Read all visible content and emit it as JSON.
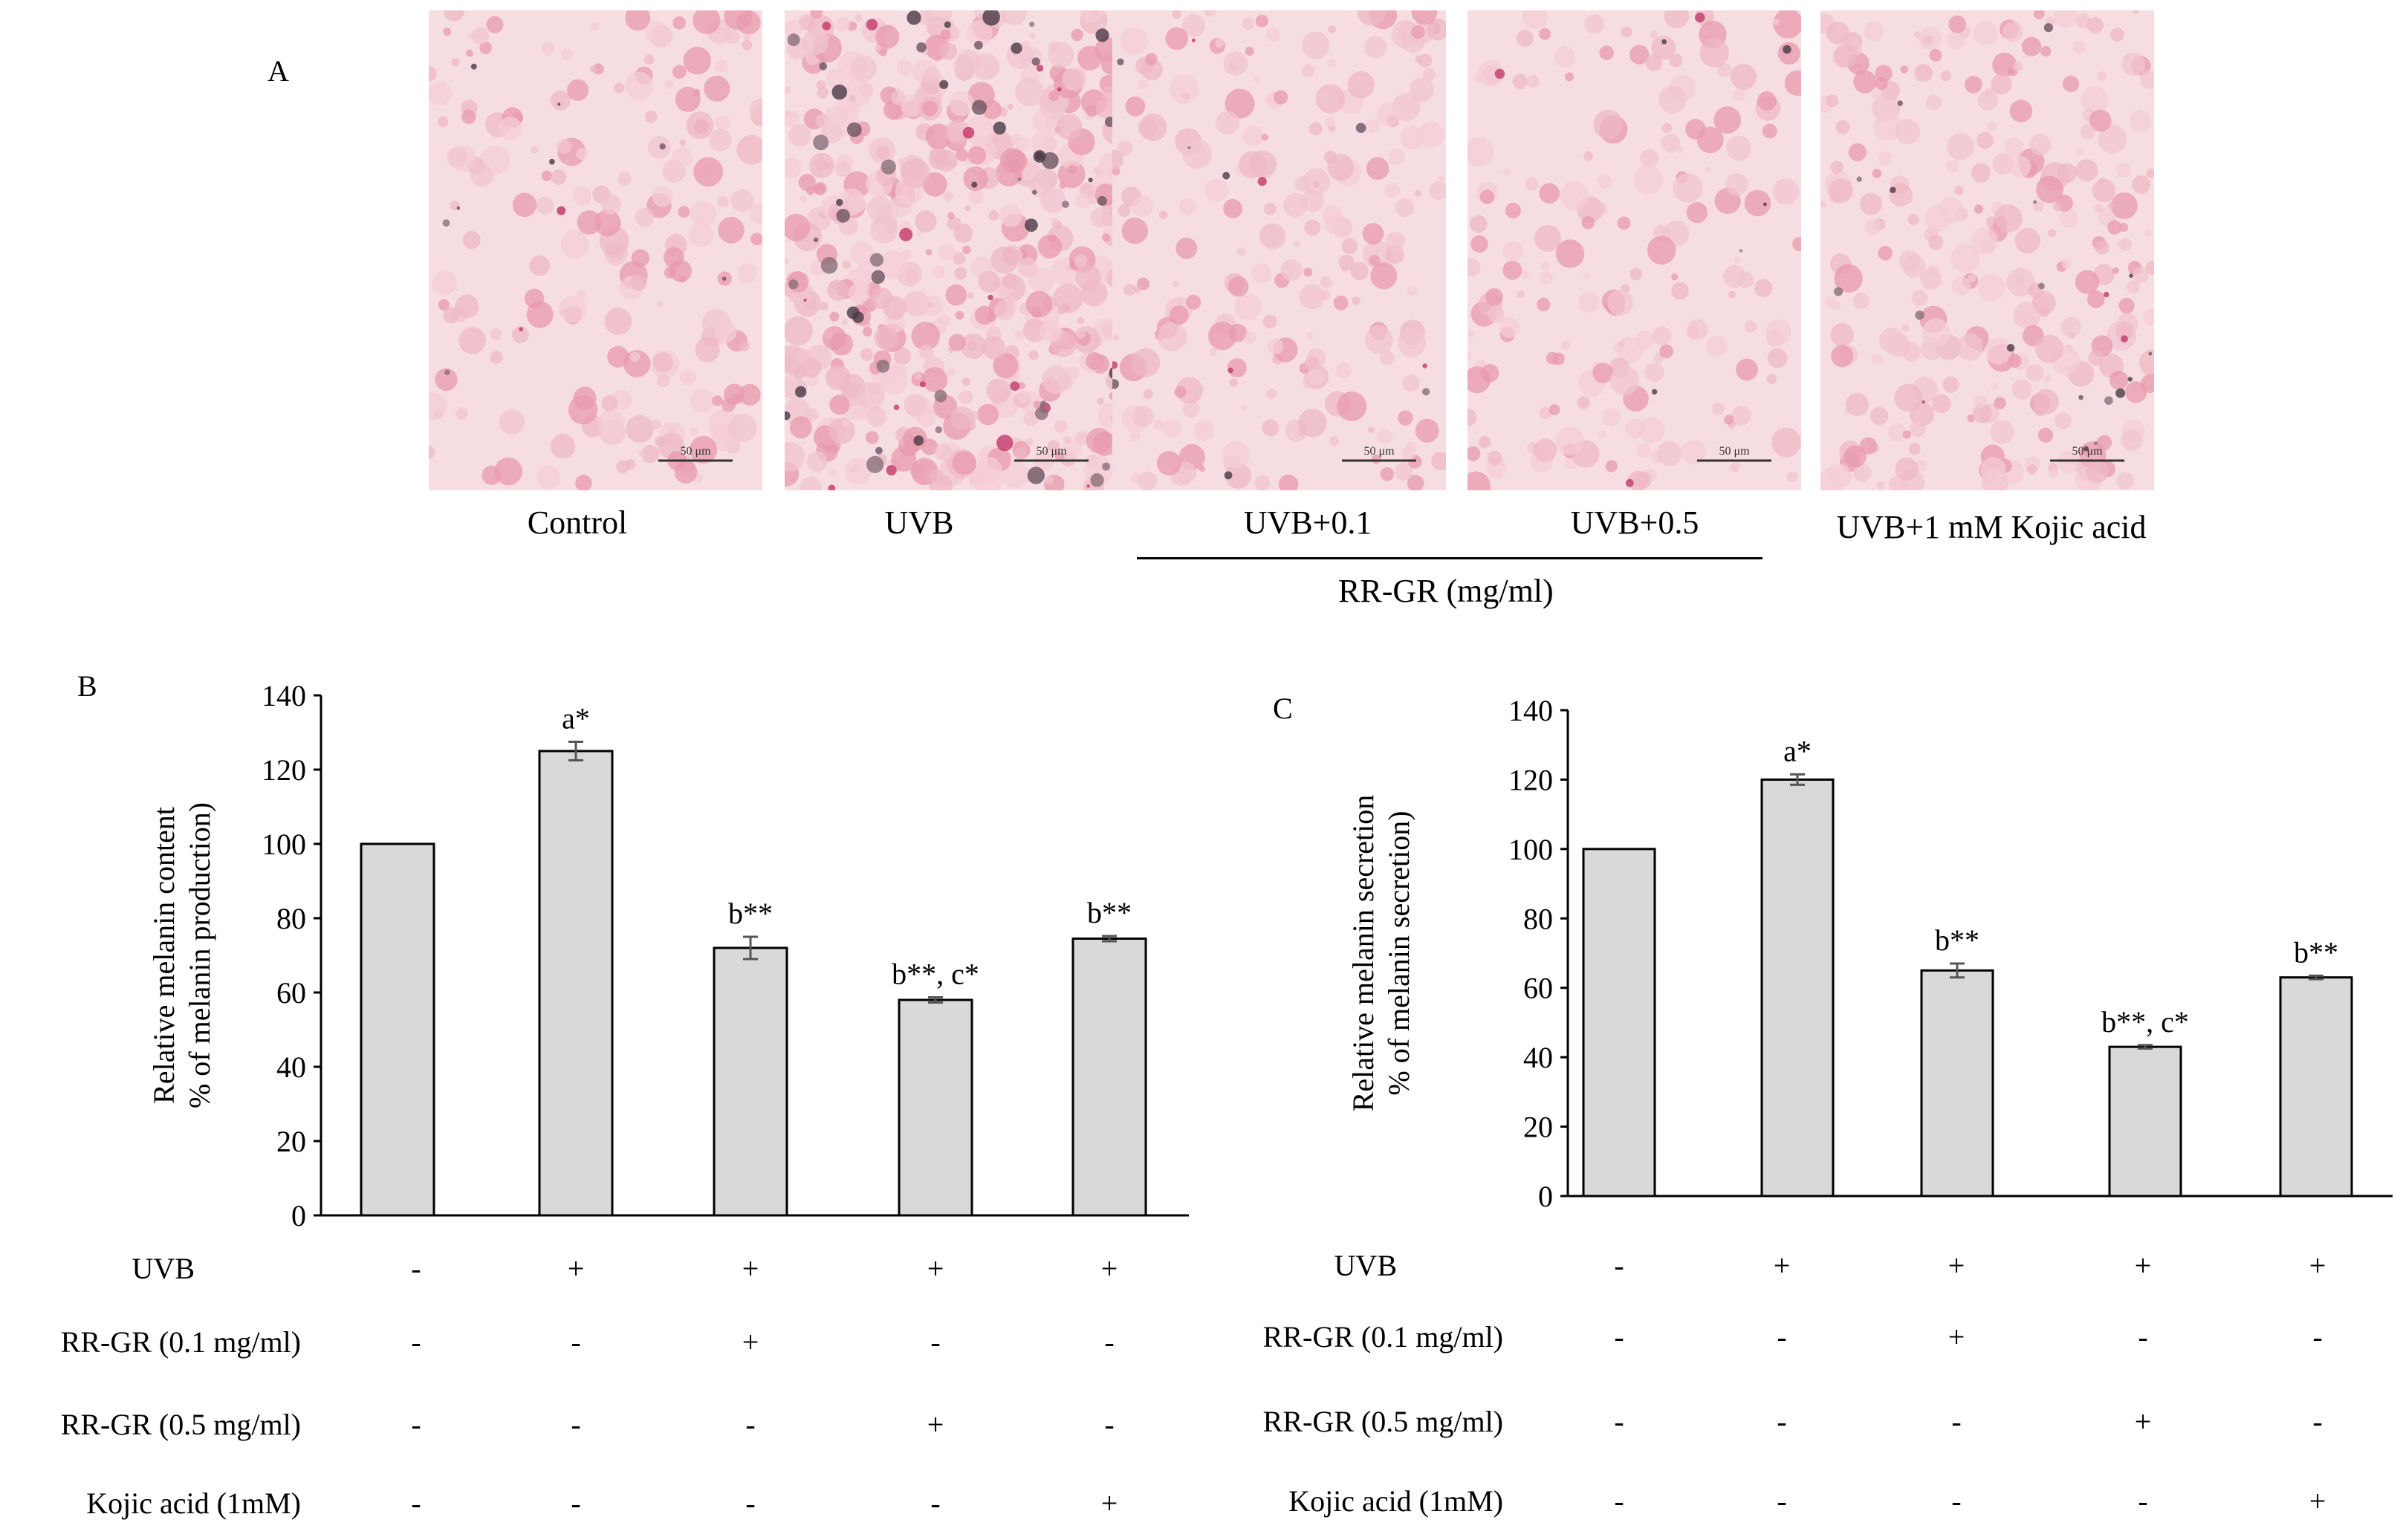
{
  "panel_a": {
    "letter": "A",
    "images": [
      {
        "label": "Control",
        "scale_bar": "50 μm"
      },
      {
        "label": "UVB",
        "scale_bar": "50 μm"
      },
      {
        "label": "UVB+0.1",
        "scale_bar": "50 μm"
      },
      {
        "label": "UVB+0.5",
        "scale_bar": "50 μm"
      },
      {
        "label": "UVB+1 mM Kojic acid",
        "scale_bar": "50 μm"
      }
    ],
    "group_label": "RR-GR (mg/ml)"
  },
  "panel_b": {
    "letter": "B"
  },
  "panel_c": {
    "letter": "C"
  },
  "treatment_rows": [
    {
      "label": "UVB",
      "signs": [
        "-",
        "+",
        "+",
        "+",
        "+"
      ]
    },
    {
      "label": "RR-GR (0.1 mg/ml)",
      "signs": [
        "-",
        "-",
        "+",
        "-",
        "-"
      ]
    },
    {
      "label": "RR-GR (0.5 mg/ml)",
      "signs": [
        "-",
        "-",
        "-",
        "+",
        "-"
      ]
    },
    {
      "label": "Kojic acid (1mM)",
      "signs": [
        "-",
        "-",
        "-",
        "-",
        "+"
      ]
    }
  ],
  "chart_data": [
    {
      "type": "bar",
      "panel": "B",
      "ylabel": "Relative melanin content\n% of melanin production)",
      "ylim": [
        0,
        140
      ],
      "yticks": [
        0,
        20,
        40,
        60,
        80,
        100,
        120,
        140
      ],
      "values": [
        100,
        125,
        72,
        58,
        74.5
      ],
      "errors": [
        0,
        2.5,
        3,
        0.7,
        0.7
      ],
      "annotations": [
        "",
        "a*",
        "b**",
        "b**, c*",
        "b**"
      ],
      "bar_color": "#d9d9d9",
      "grid": false
    },
    {
      "type": "bar",
      "panel": "C",
      "ylabel": "Relative melanin secretion\n% of melanin secretion)",
      "ylim": [
        0,
        140
      ],
      "yticks": [
        0,
        20,
        40,
        60,
        80,
        100,
        120,
        140
      ],
      "values": [
        100,
        120,
        65,
        43,
        63
      ],
      "errors": [
        0,
        1.5,
        2,
        0.5,
        0.5
      ],
      "annotations": [
        "",
        "a*",
        "b**",
        "b**, c*",
        "b**"
      ],
      "bar_color": "#d9d9d9",
      "grid": false
    }
  ]
}
